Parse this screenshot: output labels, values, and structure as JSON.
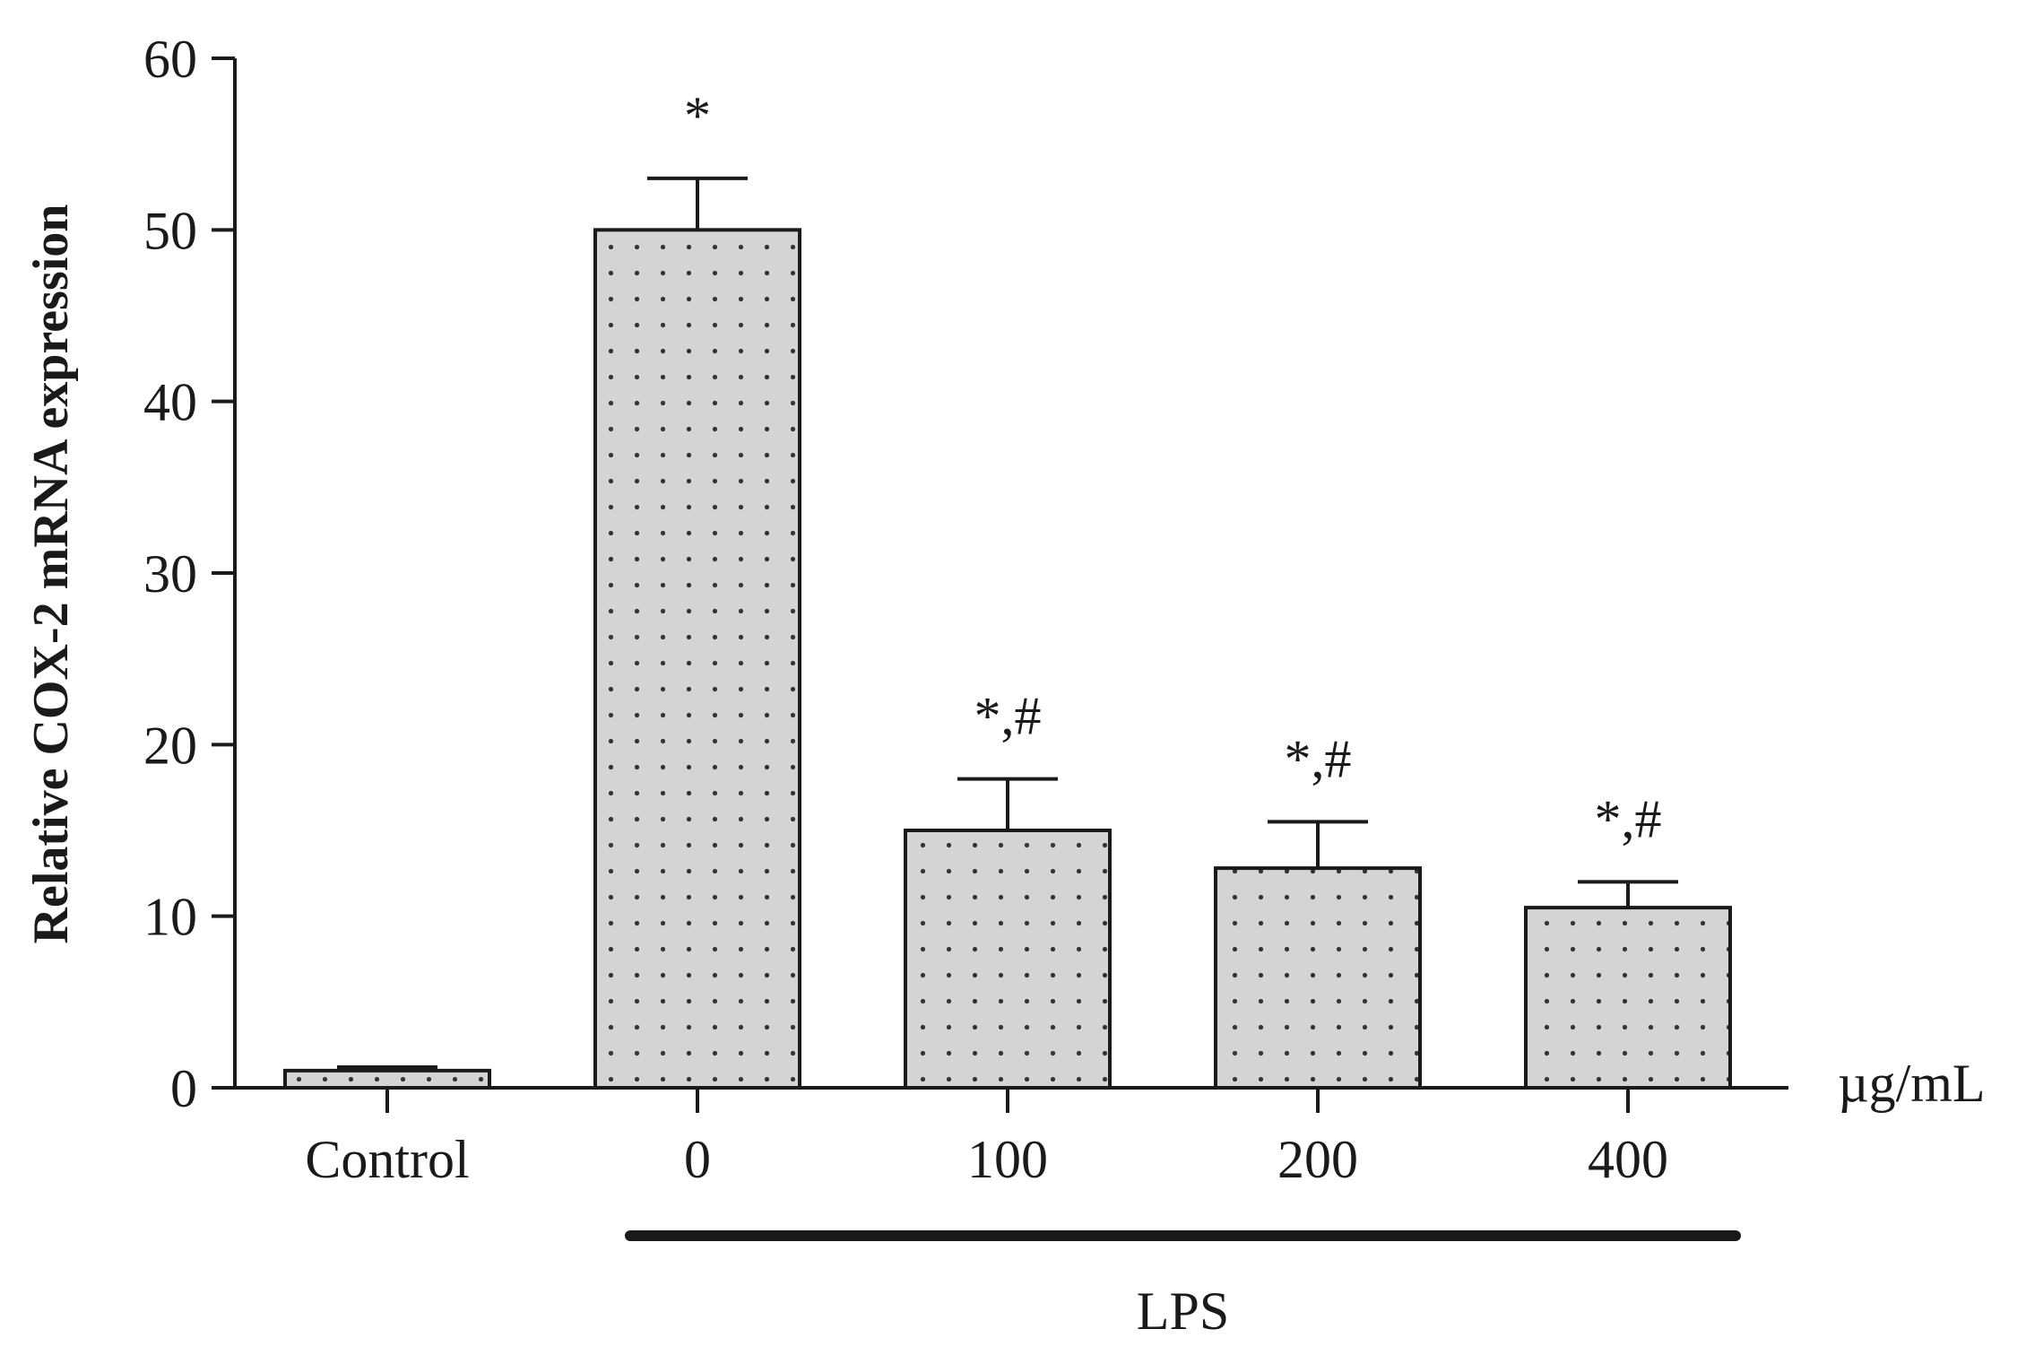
{
  "chart_data": {
    "type": "bar",
    "title": "",
    "xlabel": "",
    "ylabel": "Relative COX-2 mRNA expression",
    "x_unit": "µg/mL",
    "group_label": "LPS",
    "categories": [
      "Control",
      "0",
      "100",
      "200",
      "400"
    ],
    "values": [
      1,
      50,
      15,
      12.8,
      10.5
    ],
    "errors": [
      0.2,
      3,
      3,
      2.7,
      1.5
    ],
    "annotations": [
      "",
      "*",
      "*,#",
      "*,#",
      "*,#"
    ],
    "group_members": [
      "0",
      "100",
      "200",
      "400"
    ],
    "ylim": [
      0,
      60
    ],
    "yticks": [
      0,
      10,
      20,
      30,
      40,
      50,
      60
    ],
    "grid": false,
    "legend": "none",
    "bar_fill": "#d4d4d4",
    "dot_color": "#333333",
    "line_color": "#1a1a1a"
  }
}
